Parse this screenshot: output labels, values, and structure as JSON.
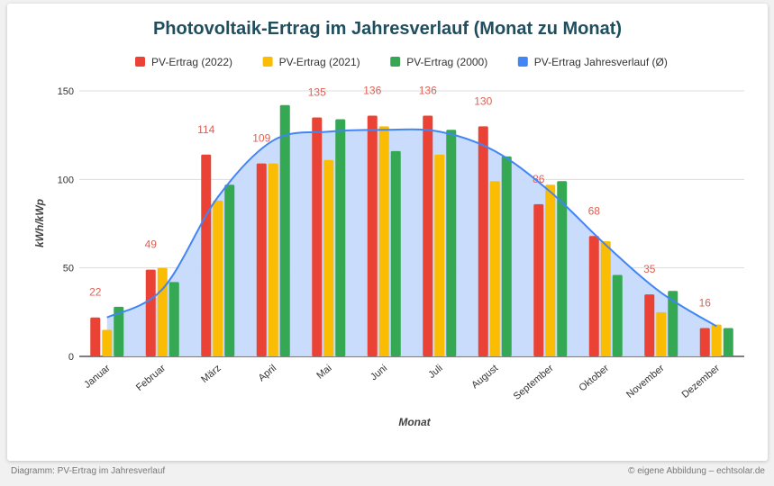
{
  "chart_data": {
    "type": "bar",
    "title": "Photovoltaik-Ertrag im Jahresverlauf (Monat zu Monat)",
    "xlabel": "Monat",
    "ylabel": "kWh/kWp",
    "ylim": [
      0,
      150
    ],
    "yticks": [
      "0",
      "50",
      "100",
      "150"
    ],
    "grid": true,
    "legend": "top",
    "categories": [
      "Januar",
      "Februar",
      "März",
      "April",
      "Mai",
      "Juni",
      "Juli",
      "August",
      "September",
      "Oktober",
      "November",
      "Dezember"
    ],
    "series": [
      {
        "name": "PV-Ertrag (2022)",
        "type": "bar",
        "color": "#ea4335",
        "values": [
          22,
          49,
          114,
          109,
          135,
          136,
          136,
          130,
          86,
          68,
          35,
          16
        ],
        "data_labels": true
      },
      {
        "name": "PV-Ertrag (2021)",
        "type": "bar",
        "color": "#fbbc04",
        "values": [
          15,
          50,
          88,
          109,
          111,
          130,
          114,
          99,
          97,
          65,
          25,
          18
        ]
      },
      {
        "name": "PV-Ertrag (2000)",
        "type": "bar",
        "color": "#34a853",
        "values": [
          28,
          42,
          97,
          142,
          134,
          116,
          128,
          113,
          99,
          46,
          37,
          16
        ]
      },
      {
        "name": "PV-Ertrag Jahresverlauf (Ø)",
        "type": "area",
        "color": "#4285f4",
        "values": [
          22,
          38,
          90,
          122,
          127,
          128,
          127,
          116,
          93,
          63,
          36,
          17
        ]
      }
    ]
  },
  "footer": {
    "left": "Diagramm: PV-Ertrag im Jahresverlauf",
    "right": "© eigene Abbildung – echtsolar.de"
  }
}
